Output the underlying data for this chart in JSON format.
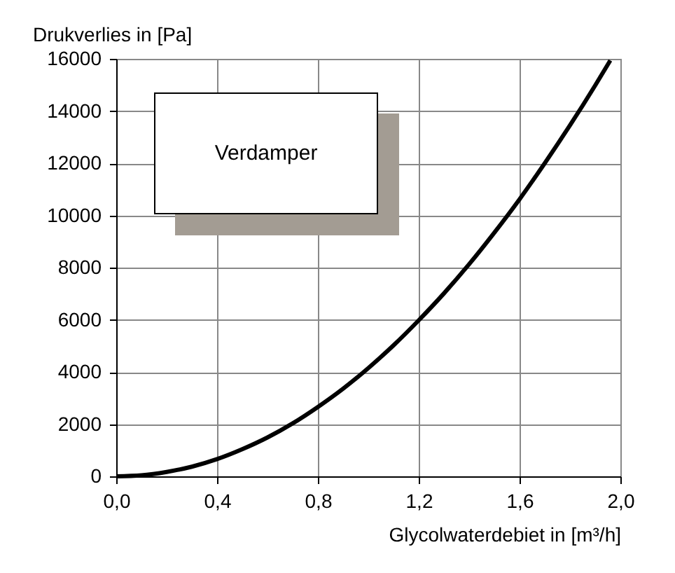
{
  "chart_data": {
    "type": "line",
    "xlabel": "Glycolwaterdebiet in [m³/h]",
    "ylabel": "Drukverlies in [Pa]",
    "annotations": [
      "Verdamper"
    ],
    "x": [
      0,
      0.1,
      0.2,
      0.3,
      0.4,
      0.5,
      0.6,
      0.7,
      0.8,
      0.9,
      1.0,
      1.1,
      1.2,
      1.3,
      1.4,
      1.5,
      1.6,
      1.7,
      1.8,
      1.9,
      1.96
    ],
    "series": [
      {
        "color": "#000000",
        "values": [
          0,
          40,
          170,
          370,
          660,
          1040,
          1490,
          2030,
          2660,
          3360,
          4150,
          5020,
          5980,
          7010,
          8130,
          9340,
          10620,
          12000,
          13450,
          14980,
          15940
        ]
      }
    ],
    "xlim": [
      0,
      2.0
    ],
    "xticks": [
      {
        "value": 0,
        "label": "0,0"
      },
      {
        "value": 0.4,
        "label": "0,4"
      },
      {
        "value": 0.8,
        "label": "0,8"
      },
      {
        "value": 1.2,
        "label": "1,2"
      },
      {
        "value": 1.6,
        "label": "1,6"
      },
      {
        "value": 2.0,
        "label": "2,0"
      }
    ],
    "ylim": [
      0,
      16000
    ],
    "yticks": [
      0,
      2000,
      4000,
      6000,
      8000,
      10000,
      12000,
      14000,
      16000
    ],
    "grid": true,
    "marker": "none",
    "line_style": "solid"
  }
}
